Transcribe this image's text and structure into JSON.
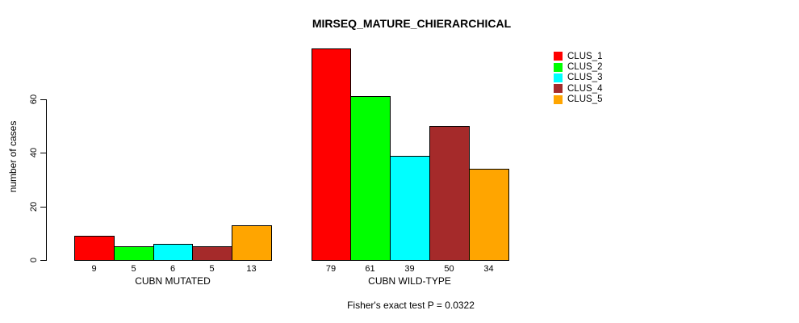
{
  "chart_data": {
    "type": "bar",
    "title": "MIRSEQ_MATURE_CHIERARCHICAL",
    "ylabel": "number of cases",
    "xlabel": "",
    "categories": [
      "CUBN MUTATED",
      "CUBN WILD-TYPE"
    ],
    "series": [
      {
        "name": "CLUS_1",
        "color": "#FF0000",
        "values": [
          9,
          79
        ]
      },
      {
        "name": "CLUS_2",
        "color": "#00FF00",
        "values": [
          5,
          61
        ]
      },
      {
        "name": "CLUS_3",
        "color": "#00FFFF",
        "values": [
          6,
          39
        ]
      },
      {
        "name": "CLUS_4",
        "color": "#A52A2A",
        "values": [
          5,
          50
        ]
      },
      {
        "name": "CLUS_5",
        "color": "#FFA500",
        "values": [
          13,
          34
        ]
      }
    ],
    "bar_value_labels": true,
    "yticks": [
      0,
      20,
      40,
      60
    ],
    "ylim": [
      0,
      82
    ],
    "grid": false,
    "legend_position": "top-right",
    "annotation": "Fisher's exact test P = 0.0322"
  }
}
